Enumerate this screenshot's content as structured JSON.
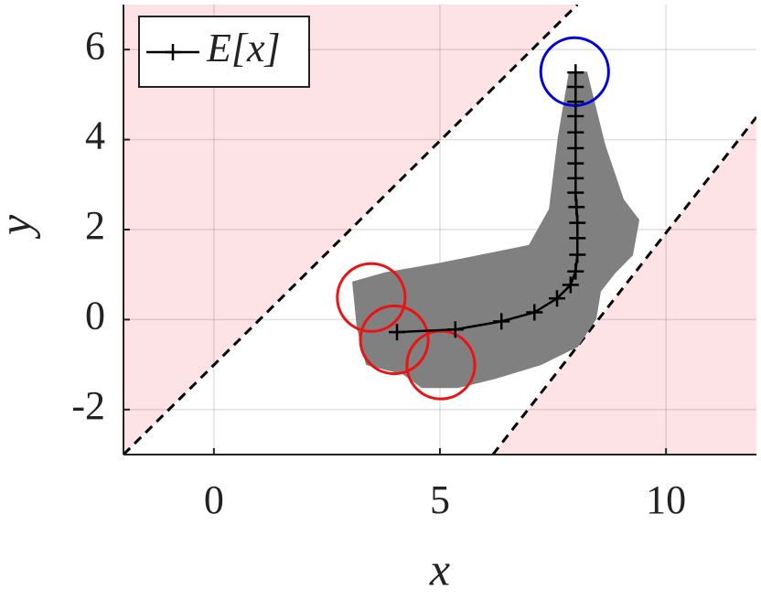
{
  "chart_data": {
    "type": "line",
    "xlabel": "x",
    "ylabel": "y",
    "xlim": [
      -2,
      12
    ],
    "ylim": [
      -3,
      7
    ],
    "xticks": [
      0,
      5,
      10
    ],
    "yticks": [
      -2,
      0,
      2,
      4,
      6
    ],
    "grid": true,
    "legend": "upper left",
    "series": [
      {
        "name": "E[x]",
        "color": "#000000",
        "x": [
          4.05,
          5.34,
          6.36,
          7.09,
          7.59,
          7.89,
          8.0,
          8.04,
          8.04,
          8.04,
          8.02,
          8.0,
          8.0,
          8.0,
          8.0,
          8.0,
          8.0,
          8.0,
          8.0,
          8.0
        ],
        "values": [
          -0.28,
          -0.22,
          -0.04,
          0.16,
          0.47,
          0.77,
          1.07,
          1.44,
          1.81,
          2.15,
          2.5,
          2.82,
          3.14,
          3.47,
          3.81,
          4.16,
          4.52,
          4.84,
          5.17,
          5.49
        ]
      }
    ],
    "band": {
      "color": "#808080",
      "x": [
        3.08,
        3.79,
        5.0,
        6.98,
        7.43,
        7.63,
        7.87,
        8.24,
        8.64,
        9.05,
        9.39,
        9.25,
        8.85,
        8.54,
        8.44,
        8.04,
        7.23,
        6.21,
        5.4,
        4.6,
        4.19,
        3.38,
        3.18
      ],
      "y": [
        0.83,
        1.03,
        1.24,
        1.64,
        2.45,
        4.07,
        5.49,
        5.49,
        3.87,
        2.66,
        2.21,
        1.44,
        1.03,
        0.63,
        0.02,
        -0.59,
        -0.99,
        -1.3,
        -1.5,
        -1.5,
        -1.2,
        -0.99,
        -0.18
      ]
    },
    "circles": [
      {
        "x": 3.48,
        "y": 0.49,
        "r": 0.75,
        "color": "#ee1111"
      },
      {
        "x": 3.99,
        "y": -0.45,
        "r": 0.75,
        "color": "#ee1111"
      },
      {
        "x": 5.02,
        "y": -1.01,
        "r": 0.75,
        "color": "#ee1111"
      },
      {
        "x": 7.98,
        "y": 5.51,
        "r": 0.75,
        "color": "#0000dd"
      }
    ],
    "constraints": {
      "color": "#fde3e6",
      "lines": [
        {
          "x": [
            -2,
            8.04
          ],
          "y": [
            -3,
            7
          ],
          "side": "above"
        },
        {
          "x": [
            6.17,
            12
          ],
          "y": [
            -3,
            4.5
          ],
          "side": "below"
        }
      ]
    }
  }
}
